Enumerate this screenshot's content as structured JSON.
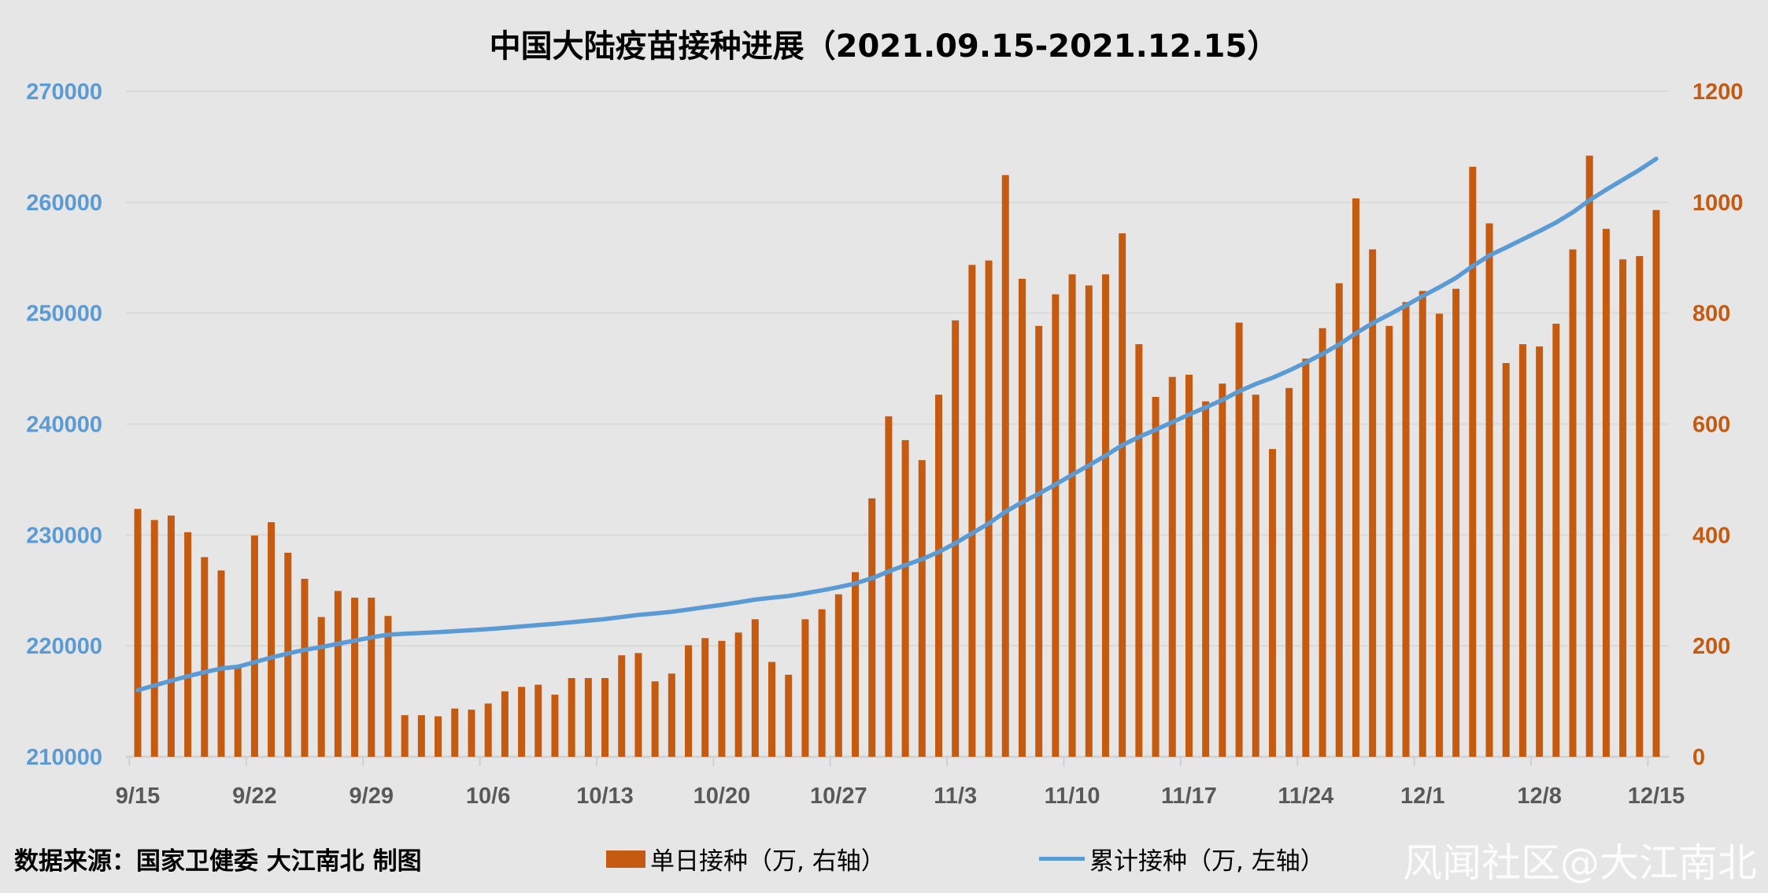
{
  "chart_data": {
    "type": "bar+line",
    "title": "中国大陆疫苗接种进展（2021.09.15-2021.12.15）",
    "x_tick_labels": [
      "9/15",
      "9/22",
      "9/29",
      "10/6",
      "10/13",
      "10/20",
      "10/27",
      "11/3",
      "11/10",
      "11/17",
      "11/24",
      "12/1",
      "12/8",
      "12/15"
    ],
    "dates": [
      "9/15",
      "9/16",
      "9/17",
      "9/18",
      "9/19",
      "9/20",
      "9/21",
      "9/22",
      "9/23",
      "9/24",
      "9/25",
      "9/26",
      "9/27",
      "9/28",
      "9/29",
      "9/30",
      "10/1",
      "10/2",
      "10/3",
      "10/4",
      "10/5",
      "10/6",
      "10/7",
      "10/8",
      "10/9",
      "10/10",
      "10/11",
      "10/12",
      "10/13",
      "10/14",
      "10/15",
      "10/16",
      "10/17",
      "10/18",
      "10/19",
      "10/20",
      "10/21",
      "10/22",
      "10/23",
      "10/24",
      "10/25",
      "10/26",
      "10/27",
      "10/28",
      "10/29",
      "10/30",
      "10/31",
      "11/1",
      "11/2",
      "11/3",
      "11/4",
      "11/5",
      "11/6",
      "11/7",
      "11/8",
      "11/9",
      "11/10",
      "11/11",
      "11/12",
      "11/13",
      "11/14",
      "11/15",
      "11/16",
      "11/17",
      "11/18",
      "11/19",
      "11/20",
      "11/21",
      "11/22",
      "11/23",
      "11/24",
      "11/25",
      "11/26",
      "11/27",
      "11/28",
      "11/29",
      "11/30",
      "12/1",
      "12/2",
      "12/3",
      "12/4",
      "12/5",
      "12/6",
      "12/7",
      "12/8",
      "12/9",
      "12/10",
      "12/11",
      "12/12",
      "12/13",
      "12/14",
      "12/15"
    ],
    "series": [
      {
        "name": "单日接种（万, 右轴）",
        "type": "bar",
        "axis": "right",
        "color": "#C55A11",
        "values": [
          447,
          427,
          435,
          405,
          360,
          336,
          163,
          399,
          423,
          368,
          321,
          252,
          299,
          287,
          287,
          254,
          75,
          75,
          73,
          87,
          85,
          96,
          118,
          126,
          130,
          112,
          142,
          142,
          142,
          183,
          187,
          136,
          150,
          201,
          214,
          209,
          224,
          248,
          171,
          148,
          248,
          266,
          293,
          333,
          466,
          614,
          571,
          535,
          653,
          787,
          887,
          895,
          1049,
          862,
          777,
          834,
          870,
          850,
          870,
          944,
          744,
          649,
          685,
          689,
          641,
          673,
          783,
          653,
          555,
          665,
          718,
          773,
          854,
          1007,
          915,
          777,
          820,
          840,
          799,
          844,
          1064,
          962,
          710,
          744,
          740,
          781,
          915,
          1084,
          952,
          897,
          903,
          986
        ]
      },
      {
        "name": "累计接种（万, 左轴）",
        "type": "line",
        "axis": "left",
        "color": "#5B9BD5",
        "values": [
          216000,
          216427,
          216862,
          217267,
          217627,
          217963,
          218126,
          218525,
          218948,
          219316,
          219637,
          219889,
          220188,
          220475,
          220762,
          221016,
          221091,
          221166,
          221239,
          221326,
          221411,
          221507,
          221625,
          221751,
          221881,
          221993,
          222135,
          222277,
          222419,
          222602,
          222789,
          222925,
          223075,
          223276,
          223490,
          223699,
          223923,
          224171,
          224342,
          224490,
          224738,
          225004,
          225297,
          225630,
          226096,
          226710,
          227281,
          227816,
          228469,
          229256,
          230143,
          231038,
          232087,
          232949,
          233726,
          234560,
          235430,
          236280,
          237150,
          238094,
          238838,
          239487,
          240172,
          240861,
          241502,
          242175,
          242958,
          243611,
          244166,
          244831,
          245549,
          246322,
          247176,
          248183,
          249098,
          249875,
          250695,
          251535,
          252334,
          253178,
          254242,
          255204,
          255914,
          256658,
          257398,
          258179,
          259094,
          260178,
          261130,
          262027,
          262930,
          263916
        ]
      }
    ],
    "left_axis": {
      "ylim": [
        210000,
        270000
      ],
      "ticks": [
        "210000",
        "220000",
        "230000",
        "240000",
        "250000",
        "260000",
        "270000"
      ],
      "color": "#5B9BD5"
    },
    "right_axis": {
      "ylim": [
        0,
        1200
      ],
      "ticks": [
        "0",
        "200",
        "400",
        "600",
        "800",
        "1000",
        "1200"
      ],
      "color": "#C55A11"
    },
    "grid": true,
    "legend_position": "bottom"
  },
  "footer": {
    "source": "数据来源：国家卫健委    大江南北 制图",
    "legend_bar": "单日接种（万, 右轴）",
    "legend_line": "累计接种（万, 左轴）",
    "watermark": "风闻社区@大江南北"
  }
}
